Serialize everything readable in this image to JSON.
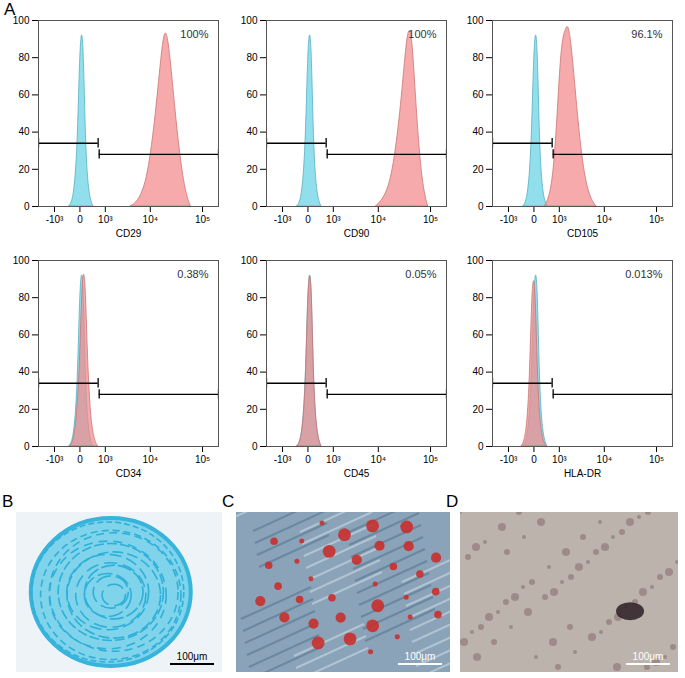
{
  "chart_data": [
    {
      "type": "area",
      "xlabel": "CD29",
      "annotation": "100%",
      "xlim": [
        -2500,
        200000
      ],
      "xticks": [
        {
          "value": -1000,
          "label": "-10³"
        },
        0,
        {
          "value": 1000,
          "label": "10³"
        },
        {
          "value": 10000,
          "label": "10⁴"
        },
        {
          "value": 100000,
          "label": "10⁵"
        }
      ],
      "ylim": [
        0,
        100
      ],
      "yticks": [
        0,
        20,
        40,
        60,
        80,
        100
      ],
      "gates": [
        {
          "x": [
            -2500,
            600
          ],
          "y": 34
        },
        {
          "x": [
            650,
            200000
          ],
          "y": 28
        }
      ],
      "series": [
        {
          "color": "#66d2e6",
          "x": [
            -300,
            -150,
            -50,
            0,
            50,
            100,
            150,
            250,
            400
          ],
          "values": [
            0,
            3,
            30,
            80,
            98,
            80,
            30,
            5,
            0
          ]
        },
        {
          "color": "#f3898a",
          "x": [
            4000,
            6000,
            9000,
            13000,
            17000,
            20000,
            24000,
            32000,
            45000,
            60000
          ],
          "values": [
            0,
            3,
            15,
            50,
            85,
            97,
            85,
            45,
            10,
            0
          ]
        }
      ]
    },
    {
      "type": "area",
      "xlabel": "CD90",
      "annotation": "100%",
      "xlim": [
        -2500,
        200000
      ],
      "xticks": [
        {
          "value": -1000,
          "label": "-10³"
        },
        0,
        {
          "value": 1000,
          "label": "10³"
        },
        {
          "value": 10000,
          "label": "10⁴"
        },
        {
          "value": 100000,
          "label": "10⁵"
        }
      ],
      "ylim": [
        0,
        100
      ],
      "yticks": [
        0,
        20,
        40,
        60,
        80,
        100
      ],
      "gates": [
        {
          "x": [
            -2500,
            600
          ],
          "y": 34
        },
        {
          "x": [
            650,
            200000
          ],
          "y": 28
        }
      ],
      "series": [
        {
          "color": "#66d2e6",
          "x": [
            -300,
            -150,
            -50,
            0,
            50,
            100,
            150,
            250,
            400
          ],
          "values": [
            0,
            3,
            30,
            80,
            98,
            80,
            30,
            5,
            0
          ]
        },
        {
          "color": "#f3898a",
          "x": [
            9000,
            14000,
            20000,
            28000,
            35000,
            40000,
            46000,
            55000,
            70000,
            90000
          ],
          "values": [
            0,
            5,
            20,
            55,
            88,
            97,
            90,
            50,
            12,
            0
          ]
        }
      ]
    },
    {
      "type": "area",
      "xlabel": "CD105",
      "annotation": "96.1%",
      "xlim": [
        -2500,
        200000
      ],
      "xticks": [
        {
          "value": -1000,
          "label": "-10³"
        },
        0,
        {
          "value": 1000,
          "label": "10³"
        },
        {
          "value": 10000,
          "label": "10⁴"
        },
        {
          "value": 100000,
          "label": "10⁵"
        }
      ],
      "ylim": [
        0,
        100
      ],
      "yticks": [
        0,
        20,
        40,
        60,
        80,
        100
      ],
      "gates": [
        {
          "x": [
            -2500,
            600
          ],
          "y": 34
        },
        {
          "x": [
            650,
            200000
          ],
          "y": 28
        }
      ],
      "series": [
        {
          "color": "#66d2e6",
          "x": [
            -300,
            -150,
            -50,
            0,
            50,
            100,
            150,
            250,
            400
          ],
          "values": [
            0,
            3,
            30,
            80,
            98,
            80,
            30,
            5,
            0
          ]
        },
        {
          "color": "#f3898a",
          "x": [
            300,
            500,
            700,
            900,
            1100,
            1300,
            1500,
            1700,
            2000,
            2500,
            3500,
            5000,
            7000
          ],
          "values": [
            0,
            5,
            20,
            50,
            80,
            92,
            95,
            98,
            90,
            65,
            25,
            5,
            0
          ]
        }
      ]
    },
    {
      "type": "area",
      "xlabel": "CD34",
      "annotation": "0.38%",
      "xlim": [
        -2500,
        200000
      ],
      "xticks": [
        {
          "value": -1000,
          "label": "-10³"
        },
        0,
        {
          "value": 1000,
          "label": "10³"
        },
        {
          "value": 10000,
          "label": "10⁴"
        },
        {
          "value": 100000,
          "label": "10⁵"
        }
      ],
      "ylim": [
        0,
        100
      ],
      "yticks": [
        0,
        20,
        40,
        60,
        80,
        100
      ],
      "gates": [
        {
          "x": [
            -2500,
            600
          ],
          "y": 34
        },
        {
          "x": [
            650,
            200000
          ],
          "y": 28
        }
      ],
      "series": [
        {
          "color": "#66d2e6",
          "x": [
            -300,
            -150,
            -50,
            0,
            50,
            100,
            150,
            250,
            400
          ],
          "values": [
            0,
            3,
            30,
            80,
            98,
            80,
            30,
            5,
            0
          ]
        },
        {
          "color": "#f3898a",
          "x": [
            -250,
            -100,
            0,
            50,
            100,
            150,
            200,
            300,
            450,
            600
          ],
          "values": [
            0,
            5,
            40,
            85,
            96,
            85,
            50,
            15,
            3,
            0
          ]
        }
      ]
    },
    {
      "type": "area",
      "xlabel": "CD45",
      "annotation": "0.05%",
      "xlim": [
        -2500,
        200000
      ],
      "xticks": [
        {
          "value": -1000,
          "label": "-10³"
        },
        0,
        {
          "value": 1000,
          "label": "10³"
        },
        {
          "value": 10000,
          "label": "10⁴"
        },
        {
          "value": 100000,
          "label": "10⁵"
        }
      ],
      "ylim": [
        0,
        100
      ],
      "yticks": [
        0,
        20,
        40,
        60,
        80,
        100
      ],
      "gates": [
        {
          "x": [
            -2500,
            600
          ],
          "y": 34
        },
        {
          "x": [
            650,
            200000
          ],
          "y": 28
        }
      ],
      "series": [
        {
          "color": "#66d2e6",
          "x": [
            -300,
            -150,
            -50,
            0,
            50,
            100,
            150,
            250,
            400
          ],
          "values": [
            0,
            3,
            30,
            80,
            98,
            80,
            30,
            5,
            0
          ]
        },
        {
          "color": "#f3898a",
          "x": [
            -300,
            -150,
            -50,
            0,
            50,
            100,
            150,
            250,
            400
          ],
          "values": [
            0,
            3,
            28,
            78,
            97,
            82,
            32,
            6,
            0
          ]
        }
      ]
    },
    {
      "type": "area",
      "xlabel": "HLA-DR",
      "annotation": "0.013%",
      "xlim": [
        -2500,
        200000
      ],
      "xticks": [
        {
          "value": -1000,
          "label": "-10³"
        },
        0,
        {
          "value": 1000,
          "label": "10³"
        },
        {
          "value": 10000,
          "label": "10⁴"
        },
        {
          "value": 100000,
          "label": "10⁵"
        }
      ],
      "ylim": [
        0,
        100
      ],
      "yticks": [
        0,
        20,
        40,
        60,
        80,
        100
      ],
      "gates": [
        {
          "x": [
            -2500,
            600
          ],
          "y": 34
        },
        {
          "x": [
            650,
            200000
          ],
          "y": 28
        }
      ],
      "series": [
        {
          "color": "#66d2e6",
          "x": [
            -300,
            -150,
            -50,
            0,
            50,
            100,
            150,
            250,
            400
          ],
          "values": [
            0,
            3,
            30,
            80,
            98,
            80,
            30,
            5,
            0
          ]
        },
        {
          "color": "#f3898a",
          "x": [
            -350,
            -200,
            -100,
            -50,
            0,
            50,
            100,
            200,
            350
          ],
          "values": [
            0,
            4,
            30,
            75,
            95,
            78,
            30,
            5,
            0
          ]
        }
      ]
    }
  ],
  "figure": {
    "panels": [
      {
        "label": "A"
      },
      {
        "label": "B",
        "scale_bar": "100μm"
      },
      {
        "label": "C",
        "scale_bar": "100μm"
      },
      {
        "label": "D",
        "scale_bar": "100μm"
      }
    ]
  }
}
